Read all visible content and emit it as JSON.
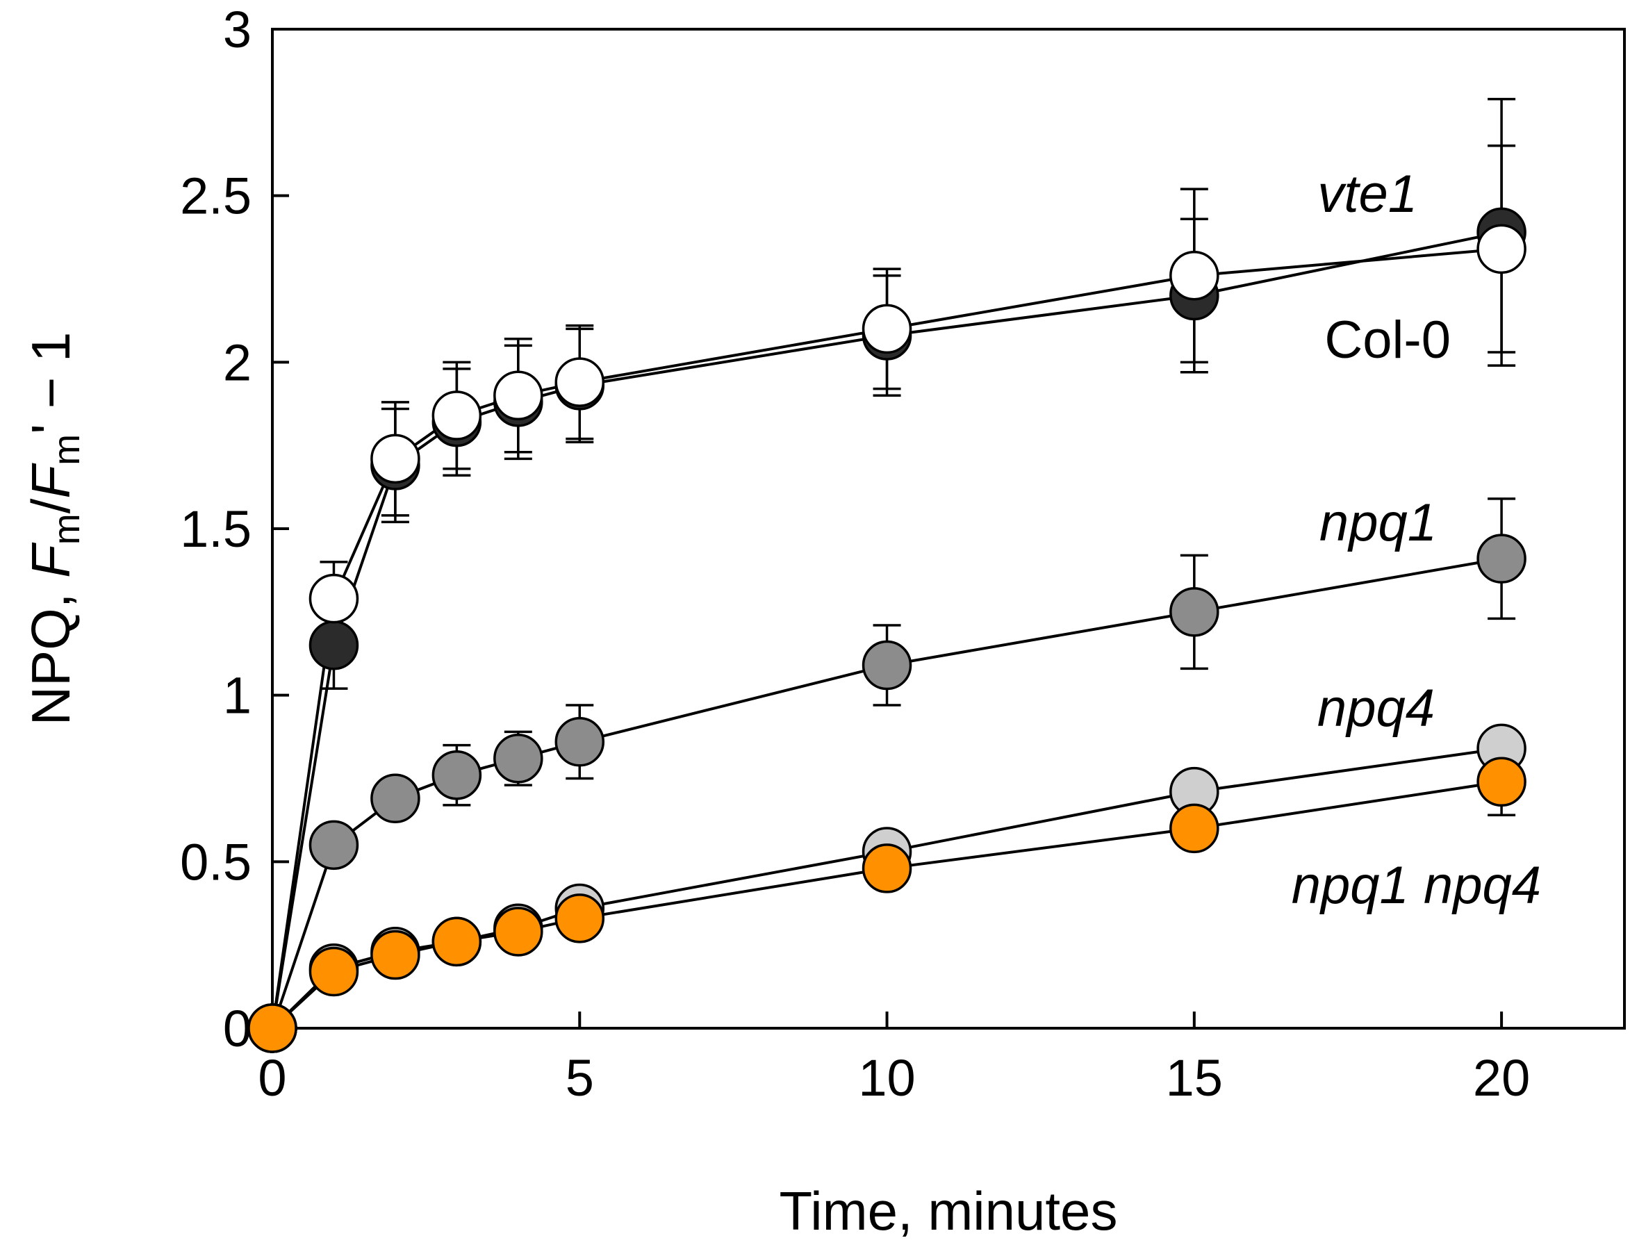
{
  "chart_data": {
    "type": "line",
    "xlabel": "Time, minutes",
    "ylabel": {
      "prefix": "NPQ, ",
      "f1": "F",
      "sub1": "m",
      "slash": "/",
      "f2": "F",
      "sub2": "m",
      "suffix": "' − 1"
    },
    "xlim": [
      0,
      22
    ],
    "ylim": [
      0,
      3
    ],
    "x_ticks": [
      0,
      5,
      10,
      15,
      20
    ],
    "x_tick_labels": [
      "0",
      "5",
      "10",
      "15",
      "20"
    ],
    "y_ticks": [
      0,
      0.5,
      1,
      1.5,
      2,
      2.5,
      3
    ],
    "y_tick_labels": [
      "0",
      "0.5",
      "1",
      "1.5",
      "2",
      "2.5",
      "3"
    ],
    "x": [
      0,
      1,
      2,
      3,
      4,
      5,
      10,
      15,
      20
    ],
    "series": [
      {
        "name": "vte1",
        "italic": true,
        "color": "#2b2b2b",
        "values": [
          0,
          1.15,
          1.69,
          1.82,
          1.88,
          1.93,
          2.08,
          2.2,
          2.39
        ],
        "errors": [
          0,
          0.13,
          0.17,
          0.16,
          0.17,
          0.17,
          0.18,
          0.23,
          0.4
        ]
      },
      {
        "name": "Col-0",
        "italic": false,
        "color": "#ffffff",
        "values": [
          0,
          1.29,
          1.71,
          1.84,
          1.9,
          1.94,
          2.1,
          2.26,
          2.34
        ],
        "errors": [
          0,
          0.11,
          0.17,
          0.16,
          0.17,
          0.17,
          0.18,
          0.26,
          0.31
        ]
      },
      {
        "name": "npq1",
        "italic": true,
        "color": "#8c8c8c",
        "values": [
          0,
          0.55,
          0.69,
          0.76,
          0.81,
          0.86,
          1.09,
          1.25,
          1.41
        ],
        "errors": [
          0,
          0.03,
          0.04,
          0.09,
          0.08,
          0.11,
          0.12,
          0.17,
          0.18
        ]
      },
      {
        "name": "npq4",
        "italic": true,
        "color": "#cfcfcf",
        "values": [
          0,
          0.18,
          0.23,
          0.26,
          0.3,
          0.36,
          0.53,
          0.71,
          0.84
        ],
        "errors": [
          0,
          0,
          0,
          0,
          0,
          0,
          0,
          0,
          0
        ]
      },
      {
        "name": "npq1 npq4",
        "italic": true,
        "color": "#ff9000",
        "values": [
          0,
          0.17,
          0.22,
          0.26,
          0.29,
          0.33,
          0.48,
          0.6,
          0.74
        ],
        "errors": [
          0,
          0,
          0,
          0,
          0,
          0,
          0,
          0,
          0.1
        ]
      }
    ],
    "grid": false,
    "legend": "inline labels at right"
  }
}
